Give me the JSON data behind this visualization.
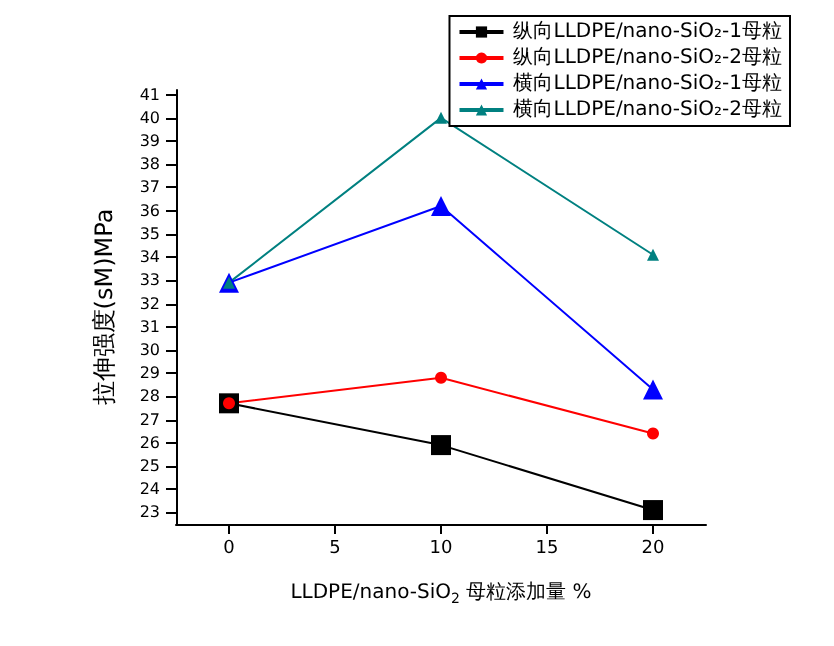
{
  "chart_data": {
    "type": "line",
    "xlabel": "LLDPE/nano-SiO$_{2}$ 母粒添加量 %",
    "ylabel": "拉伸强度(sM)MPa",
    "x": [
      0,
      10,
      20
    ],
    "series": [
      {
        "name": "纵向LLDPE/nano-SiO₂-1母粒",
        "color": "#000000",
        "marker": "square",
        "values": [
          27.7,
          25.9,
          23.1
        ]
      },
      {
        "name": "纵向LLDPE/nano-SiO₂-2母粒",
        "color": "#ff0000",
        "marker": "circle",
        "values": [
          27.7,
          28.8,
          26.4
        ]
      },
      {
        "name": "横向LLDPE/nano-SiO₂-1母粒",
        "color": "#0000ff",
        "marker": "triangle",
        "values": [
          32.9,
          36.2,
          28.3
        ]
      },
      {
        "name": "横向LLDPE/nano-SiO₂-2母粒",
        "color": "#008080",
        "marker": "triangle",
        "values": [
          32.9,
          40.0,
          34.1
        ]
      }
    ],
    "xlim": [
      -2.5,
      22.5
    ],
    "xticks": [
      0,
      5,
      10,
      15,
      20
    ],
    "ylim": [
      22.5,
      41.2
    ],
    "yticks": [
      23,
      24,
      25,
      26,
      27,
      28,
      29,
      30,
      31,
      32,
      33,
      34,
      35,
      36,
      37,
      38,
      39,
      40,
      41
    ],
    "grid": false,
    "legend": "top right",
    "line_style": "solid"
  }
}
